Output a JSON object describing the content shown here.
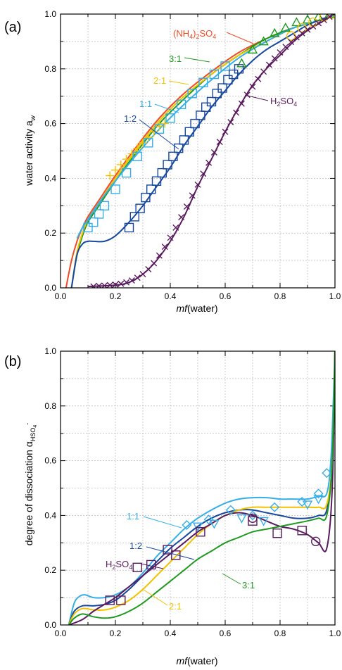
{
  "figure": {
    "panels": [
      "(a)",
      "(b)"
    ]
  },
  "colors": {
    "AS": "#f04a23",
    "3:1": "#1e9a1e",
    "2:1": "#f2c200",
    "1:1": "#35aee8",
    "1:2": "#17489e",
    "H2SO4": "#5a1a5e"
  },
  "chart_data": [
    {
      "type": "line",
      "panel": "(a)",
      "xlabel": "mf(water)",
      "ylabel": "water activity  a_w",
      "ylabel_parts": {
        "main": "water activity  a",
        "sub": "w"
      },
      "xlim": [
        0.0,
        1.0
      ],
      "ylim": [
        0.0,
        1.0
      ],
      "xticks": [
        0.0,
        0.2,
        0.4,
        0.6,
        0.8,
        1.0
      ],
      "yticks": [
        0.0,
        0.2,
        0.4,
        0.6,
        0.8,
        1.0
      ],
      "xtick_labels": [
        "0.0",
        "0.2",
        "0.4",
        "0.6",
        "0.8",
        "1.0"
      ],
      "ytick_labels": [
        "0.0",
        "0.2",
        "0.4",
        "0.6",
        "0.8",
        "1.0"
      ],
      "grid": true,
      "series": [
        {
          "name": "(NH4)2SO4",
          "label_parts": {
            "a": "(NH",
            "s1": "4",
            "b": ")",
            "s2": "2",
            "c": "SO",
            "s3": "4"
          },
          "color_key": "AS",
          "x": [
            0.02,
            0.04,
            0.06,
            0.08,
            0.1,
            0.14,
            0.2,
            0.28,
            0.36,
            0.45,
            0.55,
            0.65,
            0.75,
            0.85,
            0.92,
            1.0
          ],
          "y": [
            0.0,
            0.1,
            0.17,
            0.22,
            0.26,
            0.32,
            0.41,
            0.52,
            0.62,
            0.71,
            0.79,
            0.86,
            0.91,
            0.95,
            0.97,
            1.0
          ]
        },
        {
          "name": "3:1",
          "color_key": "3:1",
          "x": [
            0.04,
            0.06,
            0.08,
            0.1,
            0.14,
            0.2,
            0.28,
            0.36,
            0.45,
            0.55,
            0.65,
            0.75,
            0.85,
            0.92,
            1.0
          ],
          "y": [
            0.0,
            0.12,
            0.19,
            0.24,
            0.3,
            0.39,
            0.5,
            0.6,
            0.69,
            0.78,
            0.85,
            0.91,
            0.95,
            0.97,
            1.0
          ]
        },
        {
          "name": "2:1",
          "color_key": "2:1",
          "x": [
            0.04,
            0.06,
            0.08,
            0.1,
            0.14,
            0.2,
            0.28,
            0.36,
            0.45,
            0.55,
            0.65,
            0.75,
            0.85,
            0.92,
            1.0
          ],
          "y": [
            0.0,
            0.13,
            0.2,
            0.25,
            0.31,
            0.4,
            0.51,
            0.61,
            0.7,
            0.78,
            0.85,
            0.9,
            0.95,
            0.97,
            1.0
          ]
        },
        {
          "name": "1:1",
          "color_key": "1:1",
          "x": [
            0.06,
            0.08,
            0.1,
            0.14,
            0.2,
            0.28,
            0.36,
            0.45,
            0.55,
            0.65,
            0.75,
            0.85,
            0.92,
            1.0
          ],
          "y": [
            0.18,
            0.22,
            0.25,
            0.31,
            0.39,
            0.49,
            0.58,
            0.67,
            0.76,
            0.84,
            0.9,
            0.95,
            0.97,
            1.0
          ]
        },
        {
          "name": "1:2",
          "color_key": "1:2",
          "x": [
            0.04,
            0.06,
            0.08,
            0.1,
            0.12,
            0.16,
            0.2,
            0.25,
            0.3,
            0.35,
            0.4,
            0.45,
            0.5,
            0.55,
            0.6,
            0.65,
            0.7,
            0.75,
            0.8,
            0.85,
            0.9,
            0.95,
            1.0
          ],
          "y": [
            0.0,
            0.12,
            0.16,
            0.17,
            0.17,
            0.17,
            0.19,
            0.24,
            0.3,
            0.37,
            0.44,
            0.52,
            0.59,
            0.66,
            0.72,
            0.78,
            0.83,
            0.87,
            0.9,
            0.93,
            0.96,
            0.98,
            1.0
          ]
        },
        {
          "name": "H2SO4",
          "label_parts": {
            "a": "H",
            "s1": "2",
            "b": "SO",
            "s2": "4"
          },
          "color_key": "H2SO4",
          "x": [
            0.1,
            0.2,
            0.25,
            0.3,
            0.35,
            0.4,
            0.45,
            0.5,
            0.55,
            0.6,
            0.65,
            0.7,
            0.75,
            0.8,
            0.85,
            0.9,
            0.95,
            1.0
          ],
          "y": [
            0.005,
            0.01,
            0.02,
            0.05,
            0.1,
            0.17,
            0.26,
            0.37,
            0.47,
            0.57,
            0.66,
            0.74,
            0.8,
            0.85,
            0.9,
            0.94,
            0.97,
            1.0
          ]
        }
      ],
      "markers": [
        {
          "series": "3:1",
          "symbol": "triangle",
          "x": [
            0.66,
            0.7,
            0.74,
            0.78,
            0.82,
            0.86,
            0.9,
            0.94,
            0.98
          ],
          "y": [
            0.82,
            0.87,
            0.9,
            0.93,
            0.95,
            0.97,
            0.98,
            0.99,
            1.0
          ]
        },
        {
          "series": "2:1",
          "symbol": "plus",
          "x": [
            0.18,
            0.2,
            0.22,
            0.24,
            0.26,
            0.28,
            0.3,
            0.32,
            0.34,
            0.36,
            0.38
          ],
          "y": [
            0.41,
            0.43,
            0.45,
            0.47,
            0.49,
            0.51,
            0.53,
            0.55,
            0.57,
            0.59,
            0.6
          ]
        },
        {
          "series": "2:1",
          "symbol": "circle",
          "x": [
            0.84,
            0.88,
            0.92,
            0.96,
            0.99
          ],
          "y": [
            0.92,
            0.95,
            0.97,
            0.99,
            1.0
          ]
        },
        {
          "series": "1:1",
          "symbol": "square",
          "x": [
            0.1,
            0.12,
            0.14,
            0.16,
            0.2,
            0.24,
            0.28,
            0.32,
            0.36,
            0.4,
            0.44,
            0.48,
            0.52,
            0.56,
            0.6
          ],
          "y": [
            0.22,
            0.24,
            0.27,
            0.3,
            0.36,
            0.42,
            0.48,
            0.53,
            0.58,
            0.62,
            0.67,
            0.71,
            0.75,
            0.78,
            0.81
          ]
        },
        {
          "series": "1:2",
          "symbol": "square",
          "x": [
            0.25,
            0.27,
            0.29,
            0.31,
            0.33,
            0.35,
            0.37,
            0.39,
            0.41,
            0.43,
            0.45,
            0.47,
            0.49,
            0.51,
            0.53,
            0.55,
            0.57,
            0.59,
            0.61,
            0.63,
            0.65
          ],
          "y": [
            0.22,
            0.26,
            0.29,
            0.33,
            0.36,
            0.39,
            0.42,
            0.45,
            0.48,
            0.51,
            0.54,
            0.57,
            0.6,
            0.63,
            0.66,
            0.68,
            0.71,
            0.73,
            0.76,
            0.78,
            0.8
          ]
        },
        {
          "series": "H2SO4",
          "symbol": "cross",
          "x": [
            0.12,
            0.14,
            0.16,
            0.18,
            0.2,
            0.22,
            0.24,
            0.26,
            0.28,
            0.3,
            0.32,
            0.34,
            0.36,
            0.38,
            0.4,
            0.42,
            0.44,
            0.46,
            0.48,
            0.5,
            0.52,
            0.54,
            0.56,
            0.58,
            0.6,
            0.62,
            0.64,
            0.66,
            0.68,
            0.7,
            0.72,
            0.74,
            0.76,
            0.78,
            0.8,
            0.82,
            0.84,
            0.86,
            0.88,
            0.9,
            0.92,
            0.94,
            0.96,
            0.98
          ],
          "y": [
            0.005,
            0.007,
            0.008,
            0.01,
            0.012,
            0.015,
            0.02,
            0.027,
            0.037,
            0.05,
            0.068,
            0.09,
            0.118,
            0.15,
            0.183,
            0.22,
            0.258,
            0.297,
            0.337,
            0.377,
            0.417,
            0.457,
            0.495,
            0.533,
            0.57,
            0.605,
            0.64,
            0.673,
            0.705,
            0.735,
            0.763,
            0.79,
            0.815,
            0.838,
            0.86,
            0.88,
            0.898,
            0.915,
            0.93,
            0.943,
            0.955,
            0.967,
            0.978,
            0.99
          ]
        }
      ]
    },
    {
      "type": "line",
      "panel": "(b)",
      "xlabel": "mf(water)",
      "ylabel": "degree of dissociation  α_HSO4-",
      "ylabel_parts": {
        "main": "degree of dissociation  α",
        "sub": "HSO",
        "subsub": "4",
        "sup": "-"
      },
      "xlim": [
        0.0,
        1.0
      ],
      "ylim": [
        0.0,
        1.0
      ],
      "xticks": [
        0.0,
        0.2,
        0.4,
        0.6,
        0.8,
        1.0
      ],
      "yticks": [
        0.0,
        0.2,
        0.4,
        0.6,
        0.8,
        1.0
      ],
      "xtick_labels": [
        "0.0",
        "0.2",
        "0.4",
        "0.6",
        "0.8",
        "1.0"
      ],
      "ytick_labels": [
        "0.0",
        "0.2",
        "0.4",
        "0.6",
        "0.8",
        "1.0"
      ],
      "grid": true,
      "series": [
        {
          "name": "1:1",
          "color_key": "1:1",
          "x": [
            0.03,
            0.05,
            0.07,
            0.09,
            0.12,
            0.16,
            0.2,
            0.25,
            0.3,
            0.35,
            0.4,
            0.45,
            0.5,
            0.55,
            0.6,
            0.65,
            0.7,
            0.75,
            0.8,
            0.85,
            0.9,
            0.94,
            0.97,
            0.985,
            0.995,
            1.0
          ],
          "y": [
            0.0,
            0.08,
            0.105,
            0.11,
            0.1,
            0.1,
            0.11,
            0.14,
            0.19,
            0.25,
            0.3,
            0.35,
            0.39,
            0.42,
            0.445,
            0.46,
            0.465,
            0.465,
            0.46,
            0.46,
            0.46,
            0.47,
            0.48,
            0.6,
            0.85,
            1.0
          ]
        },
        {
          "name": "1:2",
          "color_key": "1:2",
          "x": [
            0.03,
            0.05,
            0.08,
            0.12,
            0.16,
            0.2,
            0.25,
            0.3,
            0.35,
            0.4,
            0.45,
            0.5,
            0.55,
            0.6,
            0.65,
            0.7,
            0.75,
            0.8,
            0.85,
            0.9,
            0.94,
            0.97,
            0.99,
            1.0
          ],
          "y": [
            0.0,
            0.05,
            0.07,
            0.07,
            0.075,
            0.09,
            0.13,
            0.18,
            0.23,
            0.28,
            0.32,
            0.36,
            0.39,
            0.41,
            0.42,
            0.42,
            0.41,
            0.4,
            0.39,
            0.39,
            0.4,
            0.42,
            0.6,
            1.0
          ]
        },
        {
          "name": "2:1",
          "color_key": "2:1",
          "x": [
            0.03,
            0.05,
            0.08,
            0.12,
            0.16,
            0.2,
            0.25,
            0.3,
            0.35,
            0.4,
            0.45,
            0.5,
            0.55,
            0.6,
            0.65,
            0.7,
            0.75,
            0.8,
            0.85,
            0.9,
            0.94,
            0.97,
            0.99,
            1.0
          ],
          "y": [
            0.0,
            0.04,
            0.06,
            0.055,
            0.055,
            0.065,
            0.09,
            0.13,
            0.18,
            0.23,
            0.28,
            0.33,
            0.37,
            0.4,
            0.42,
            0.43,
            0.43,
            0.43,
            0.43,
            0.43,
            0.43,
            0.44,
            0.6,
            1.0
          ]
        },
        {
          "name": "H2SO4",
          "label_parts": {
            "a": "H",
            "s1": "2",
            "b": "SO",
            "s2": "4"
          },
          "color_key": "H2SO4",
          "x": [
            0.03,
            0.08,
            0.12,
            0.16,
            0.2,
            0.25,
            0.3,
            0.35,
            0.4,
            0.45,
            0.5,
            0.55,
            0.6,
            0.65,
            0.7,
            0.75,
            0.8,
            0.85,
            0.9,
            0.94,
            0.97,
            0.99,
            1.0
          ],
          "y": [
            0.0,
            0.02,
            0.05,
            0.075,
            0.1,
            0.14,
            0.18,
            0.22,
            0.26,
            0.3,
            0.34,
            0.37,
            0.4,
            0.41,
            0.4,
            0.38,
            0.36,
            0.35,
            0.33,
            0.3,
            0.28,
            0.5,
            1.0
          ]
        },
        {
          "name": "3:1",
          "color_key": "3:1",
          "x": [
            0.03,
            0.05,
            0.08,
            0.12,
            0.16,
            0.2,
            0.25,
            0.3,
            0.35,
            0.4,
            0.45,
            0.5,
            0.55,
            0.6,
            0.65,
            0.7,
            0.75,
            0.8,
            0.85,
            0.9,
            0.94,
            0.97,
            0.99,
            1.0
          ],
          "y": [
            0.0,
            0.025,
            0.04,
            0.03,
            0.025,
            0.03,
            0.05,
            0.08,
            0.12,
            0.16,
            0.2,
            0.24,
            0.27,
            0.3,
            0.32,
            0.34,
            0.35,
            0.36,
            0.37,
            0.38,
            0.39,
            0.4,
            0.6,
            1.0
          ]
        }
      ],
      "markers": [
        {
          "series": "1:1",
          "symbol": "diamond",
          "x": [
            0.46,
            0.54,
            0.62,
            0.7,
            0.78,
            0.88,
            0.94,
            0.97
          ],
          "y": [
            0.365,
            0.385,
            0.42,
            0.4,
            0.43,
            0.45,
            0.48,
            0.555
          ]
        },
        {
          "series": "1:1",
          "symbol": "triangle-down",
          "x": [
            0.5,
            0.56,
            0.66,
            0.74,
            0.9,
            0.94
          ],
          "y": [
            0.36,
            0.37,
            0.39,
            0.38,
            0.44,
            0.46
          ]
        },
        {
          "series": "H2SO4",
          "symbol": "square",
          "x": [
            0.18,
            0.22,
            0.28,
            0.33,
            0.39,
            0.42,
            0.51,
            0.7,
            0.79,
            0.88
          ],
          "y": [
            0.09,
            0.09,
            0.21,
            0.22,
            0.275,
            0.255,
            0.34,
            0.38,
            0.335,
            0.345
          ]
        },
        {
          "series": "H2SO4",
          "symbol": "circle",
          "x": [
            0.7,
            0.93
          ],
          "y": [
            0.39,
            0.305
          ]
        }
      ],
      "annotations": [
        "1:1",
        "1:2",
        "H2SO4",
        "2:1",
        "3:1"
      ]
    }
  ]
}
